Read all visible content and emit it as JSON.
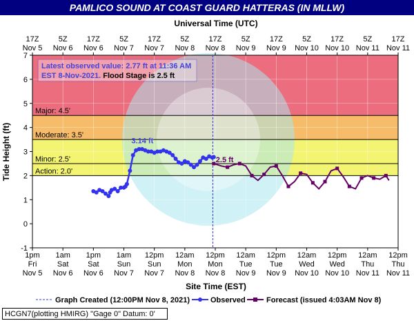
{
  "title": "PAMLICO SOUND AT COAST GUARD HATTERAS (IN MLLW)",
  "footer": "HCGN7(plotting HMIRG) \"Gage 0\" Datum: 0'",
  "colors": {
    "title_bg": "#000080",
    "plot_bg": "#dd88ee",
    "major": "#ef6a6a",
    "moderate": "#f6b04f",
    "minor": "#f2f25a",
    "observed": "#3333ee",
    "forecast": "#660066",
    "annotation_text": "#4444dd"
  },
  "chart_data": {
    "type": "line",
    "title": "PAMLICO SOUND AT COAST GUARD HATTERAS (IN MLLW)",
    "xlabel": "Site Time (EST)",
    "x2label": "Universal Time (UTC)",
    "ylabel": "Tide Height (ft)",
    "ylim": [
      -1,
      7
    ],
    "y_ticks": [
      "-1",
      "0",
      "1",
      "2",
      "3",
      "4",
      "5",
      "6",
      "7"
    ],
    "grid": true,
    "x_ticks_bottom": [
      [
        "1pm",
        "Fri",
        "Nov 5"
      ],
      [
        "1am",
        "Sat",
        "Nov 6"
      ],
      [
        "1pm",
        "Sat",
        "Nov 6"
      ],
      [
        "1am",
        "Sun",
        "Nov 7"
      ],
      [
        "12pm",
        "Sun",
        "Nov 7"
      ],
      [
        "12am",
        "Mon",
        "Nov 8"
      ],
      [
        "12pm",
        "Mon",
        "Nov 8"
      ],
      [
        "12am",
        "Tue",
        "Nov 9"
      ],
      [
        "12pm",
        "Tue",
        "Nov 9"
      ],
      [
        "12am",
        "Wed",
        "Nov 10"
      ],
      [
        "12pm",
        "Wed",
        "Nov 10"
      ],
      [
        "12am",
        "Thu",
        "Nov 11"
      ],
      [
        "12pm",
        "Thu",
        "Nov 11"
      ]
    ],
    "x_ticks_top": [
      [
        "17Z",
        "Nov 5"
      ],
      [
        "5Z",
        "Nov 6"
      ],
      [
        "17Z",
        "Nov 6"
      ],
      [
        "5Z",
        "Nov 7"
      ],
      [
        "17Z",
        "Nov 7"
      ],
      [
        "5Z",
        "Nov 8"
      ],
      [
        "17Z",
        "Nov 8"
      ],
      [
        "5Z",
        "Nov 9"
      ],
      [
        "17Z",
        "Nov 9"
      ],
      [
        "5Z",
        "Nov 10"
      ],
      [
        "17Z",
        "Nov 10"
      ],
      [
        "5Z",
        "Nov 11"
      ],
      [
        "17Z",
        "Nov 11"
      ]
    ],
    "flood_categories": [
      {
        "name": "Major",
        "label": "Major: 4.5'",
        "from": 4.5,
        "to": 7
      },
      {
        "name": "Moderate",
        "label": "Moderate: 3.5'",
        "from": 3.5,
        "to": 4.5
      },
      {
        "name": "Minor",
        "label": "Minor: 2.5'",
        "from": 2.5,
        "to": 3.5
      },
      {
        "name": "Action",
        "label": "Action: 2.0'",
        "from": 2.0,
        "to": 2.5
      }
    ],
    "graph_created_x": 5.92,
    "info_box": {
      "line1": "Latest observed value: 2.77 ft at 11:36 AM",
      "line2a": "EST 8-Nov-2021.",
      "line2b": " Flood Stage is 2.5 ft"
    },
    "peak_annotation": {
      "text": "3.14 ft",
      "x": 3.52,
      "y": 3.14
    },
    "forecast_annotation": {
      "text": "2.5 ft",
      "x": 5.95,
      "y": 2.5
    },
    "legend": {
      "graph_created": "Graph Created (12:00PM Nov 8, 2021)",
      "observed": "Observed",
      "forecast": "Forecast (issued 4:03AM Nov 8)"
    },
    "series": [
      {
        "name": "Observed",
        "x": [
          2.0,
          2.1,
          2.2,
          2.3,
          2.4,
          2.5,
          2.55,
          2.6,
          2.7,
          2.8,
          2.9,
          3.0,
          3.05,
          3.1,
          3.2,
          3.3,
          3.4,
          3.5,
          3.6,
          3.7,
          3.8,
          3.9,
          4.0,
          4.1,
          4.2,
          4.3,
          4.4,
          4.5,
          4.6,
          4.7,
          4.8,
          4.9,
          5.0,
          5.1,
          5.2,
          5.3,
          5.4,
          5.5,
          5.6,
          5.7,
          5.8,
          5.9,
          5.95
        ],
        "values": [
          1.35,
          1.3,
          1.4,
          1.35,
          1.25,
          1.15,
          1.3,
          1.4,
          1.45,
          1.35,
          1.5,
          1.5,
          1.55,
          1.65,
          2.2,
          2.85,
          3.05,
          3.1,
          3.1,
          3.05,
          3.0,
          3.0,
          2.95,
          3.0,
          3.0,
          3.05,
          3.0,
          2.95,
          2.85,
          2.7,
          2.55,
          2.5,
          2.6,
          2.55,
          2.45,
          2.35,
          2.45,
          2.6,
          2.75,
          2.7,
          2.8,
          2.75,
          2.77
        ]
      },
      {
        "name": "Forecast",
        "x": [
          5.95,
          6.2,
          6.4,
          6.6,
          6.8,
          7.0,
          7.2,
          7.4,
          7.6,
          7.8,
          8.0,
          8.2,
          8.4,
          8.6,
          8.8,
          9.0,
          9.2,
          9.4,
          9.6,
          9.8,
          10.0,
          10.2,
          10.4,
          10.6,
          10.8,
          11.0,
          11.2,
          11.4,
          11.6,
          11.7
        ],
        "values": [
          2.5,
          2.4,
          2.35,
          2.45,
          2.5,
          2.4,
          2.0,
          1.8,
          2.05,
          2.35,
          2.4,
          2.0,
          1.55,
          1.75,
          2.1,
          2.05,
          1.7,
          1.45,
          1.75,
          2.2,
          2.3,
          1.95,
          1.55,
          1.45,
          1.9,
          2.0,
          1.9,
          1.85,
          2.0,
          1.8
        ]
      }
    ]
  }
}
